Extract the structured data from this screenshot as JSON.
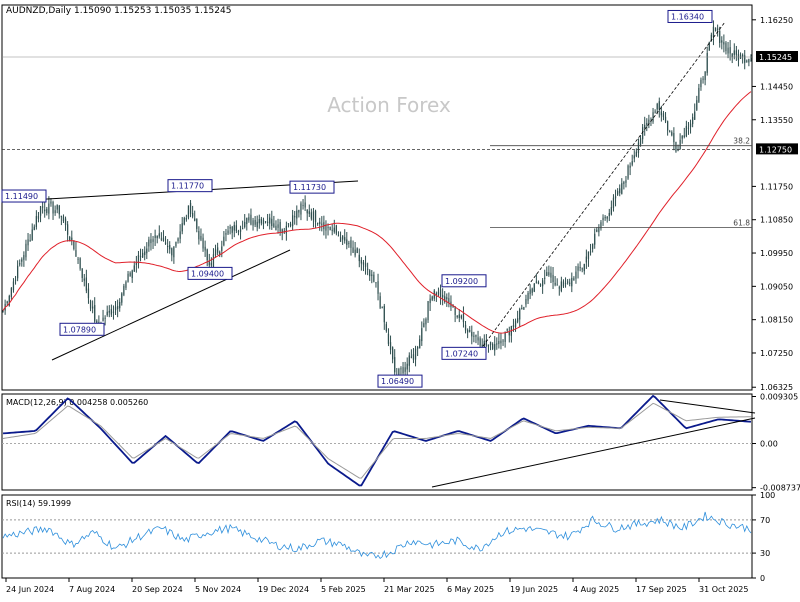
{
  "symbol": "AUDNZD",
  "timeframe": "Daily",
  "ohlc_header": "AUDNZD,Daily  1.15090 1.15253 1.15035 1.15245",
  "watermark": "Action Forex",
  "colors": {
    "background": "#ffffff",
    "candle": "#2f4f4f",
    "ma": "#e0202a",
    "macd_line": "#0a1a8c",
    "macd_signal": "#9a9a9a",
    "rsi_line": "#2e8fdc",
    "annotation_box": "#1a1a8c",
    "grid_dash": "#888888"
  },
  "chart_data": [
    {
      "type": "candlestick",
      "name": "AUDNZD Daily",
      "y_axis_labels": [
        "1.16250",
        "1.15245",
        "1.14450",
        "1.13550",
        "1.12750",
        "1.11750",
        "1.10850",
        "1.09950",
        "1.09050",
        "1.08150",
        "1.07250",
        "1.06325"
      ],
      "ylim": [
        1.0625,
        1.1665
      ],
      "x_tick_labels": [
        "24 Jun 2024",
        "7 Aug 2024",
        "20 Sep 2024",
        "5 Nov 2024",
        "19 Dec 2024",
        "5 Feb 2025",
        "21 Mar 2025",
        "6 May 2025",
        "19 Jun 2025",
        "4 Aug 2025",
        "17 Sep 2025",
        "31 Oct 2025"
      ],
      "last_price": 1.15245,
      "last_price_label": "1.15245",
      "level_line_label": "1.12750",
      "level_line_value": 1.1275,
      "key_points": [
        {
          "label": "1.11490",
          "value": 1.1149
        },
        {
          "label": "1.07890",
          "value": 1.0789
        },
        {
          "label": "1.11770",
          "value": 1.1177
        },
        {
          "label": "1.09400",
          "value": 1.094
        },
        {
          "label": "1.11730",
          "value": 1.1173
        },
        {
          "label": "1.06490",
          "value": 1.0649
        },
        {
          "label": "1.09200",
          "value": 1.092
        },
        {
          "label": "1.07240",
          "value": 1.0724
        },
        {
          "label": "1.16340",
          "value": 1.1634
        }
      ],
      "fib_levels": [
        {
          "label": "38.2",
          "value": 1.1285
        },
        {
          "label": "61.8",
          "value": 1.1064
        }
      ]
    },
    {
      "type": "line",
      "name": "MACD",
      "legend": "MACD(12,26,9) 0.004258 0.005260",
      "y_axis_labels": [
        "0.009305",
        "0.00",
        "-0.008737"
      ],
      "ylim": [
        -0.0092,
        0.0098
      ],
      "series": [
        {
          "name": "MACD",
          "key_values": [
            0.002,
            0.0025,
            0.009,
            0.003,
            -0.004,
            0.0015,
            -0.004,
            0.0025,
            0.0005,
            0.0045,
            -0.004,
            -0.0085,
            0.0025,
            0.0005,
            0.0025,
            0.0005,
            0.005,
            0.002,
            0.0035,
            0.003,
            0.0095,
            0.003,
            0.0048,
            0.0043
          ]
        },
        {
          "name": "Signal",
          "key_values": [
            0.001,
            0.002,
            0.0075,
            0.0035,
            -0.003,
            0.001,
            -0.003,
            0.002,
            0.001,
            0.0035,
            -0.003,
            -0.007,
            0.001,
            0.001,
            0.002,
            0.001,
            0.0045,
            0.0025,
            0.0032,
            0.003,
            0.008,
            0.0045,
            0.0052,
            0.0053
          ]
        }
      ]
    },
    {
      "type": "line",
      "name": "RSI",
      "legend": "RSI(14) 59.1999",
      "y_axis_labels": [
        "100",
        "70",
        "30",
        "0"
      ],
      "ylim": [
        0,
        100
      ],
      "levels": [
        70,
        30
      ],
      "key_values": [
        50,
        55,
        60,
        40,
        55,
        35,
        50,
        60,
        45,
        55,
        60,
        50,
        40,
        35,
        45,
        40,
        25,
        30,
        45,
        40,
        45,
        35,
        55,
        60,
        55,
        50,
        70,
        60,
        65,
        70,
        60,
        75,
        65,
        59
      ]
    }
  ]
}
